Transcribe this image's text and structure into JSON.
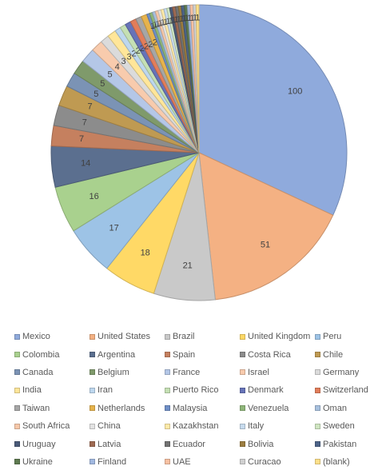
{
  "chart_data": {
    "type": "pie",
    "title": "",
    "legend_position": "bottom",
    "slices": [
      {
        "label": "Mexico",
        "value": 100,
        "color": "#8faadc"
      },
      {
        "label": "United States",
        "value": 51,
        "color": "#f4b183"
      },
      {
        "label": "Brazil",
        "value": 21,
        "color": "#c9c9c9"
      },
      {
        "label": "United Kingdom",
        "value": 18,
        "color": "#ffd966"
      },
      {
        "label": "Peru",
        "value": 17,
        "color": "#9dc3e6"
      },
      {
        "label": "Colombia",
        "value": 16,
        "color": "#a9d18e"
      },
      {
        "label": "Argentina",
        "value": 14,
        "color": "#5b6f8f"
      },
      {
        "label": "Spain",
        "value": 7,
        "color": "#c5805f"
      },
      {
        "label": "Costa Rica",
        "value": 7,
        "color": "#8c8c8c"
      },
      {
        "label": "Chile",
        "value": 7,
        "color": "#bf9a52"
      },
      {
        "label": "Canada",
        "value": 5,
        "color": "#7b93b5"
      },
      {
        "label": "Belgium",
        "value": 5,
        "color": "#7f9a6b"
      },
      {
        "label": "France",
        "value": 5,
        "color": "#b4c7e7"
      },
      {
        "label": "Israel",
        "value": 4,
        "color": "#f8cbad"
      },
      {
        "label": "Germany",
        "value": 3,
        "color": "#dbdbdb"
      },
      {
        "label": "India",
        "value": 3,
        "color": "#ffe699"
      },
      {
        "label": "Iran",
        "value": 2,
        "color": "#bdd7ee"
      },
      {
        "label": "Puerto Rico",
        "value": 2,
        "color": "#c5e0b4"
      },
      {
        "label": "Denmark",
        "value": 2,
        "color": "#6673b8"
      },
      {
        "label": "Switzerland",
        "value": 2,
        "color": "#e27d5a"
      },
      {
        "label": "Taiwan",
        "value": 2,
        "color": "#a6a6a6"
      },
      {
        "label": "Netherlands",
        "value": 2,
        "color": "#e6b34c"
      },
      {
        "label": "Malaysia",
        "value": 1,
        "color": "#6f8fc7"
      },
      {
        "label": "Venezuela",
        "value": 1,
        "color": "#8fb67a"
      },
      {
        "label": "Oman",
        "value": 1,
        "color": "#a7c0de"
      },
      {
        "label": "South Africa",
        "value": 1,
        "color": "#f6c8a9"
      },
      {
        "label": "China",
        "value": 1,
        "color": "#e3e3e3"
      },
      {
        "label": "Kazakhstan",
        "value": 1,
        "color": "#ffeaa8"
      },
      {
        "label": "Italy",
        "value": 1,
        "color": "#c7dbee"
      },
      {
        "label": "Sweden",
        "value": 1,
        "color": "#cfe5c1"
      },
      {
        "label": "Uruguay",
        "value": 1,
        "color": "#4a5a78"
      },
      {
        "label": "Latvia",
        "value": 1,
        "color": "#9e6a52"
      },
      {
        "label": "Ecuador",
        "value": 1,
        "color": "#737373"
      },
      {
        "label": "Bolivia",
        "value": 1,
        "color": "#9c7d40"
      },
      {
        "label": "Pakistan",
        "value": 1,
        "color": "#4d6488"
      },
      {
        "label": "Ukraine",
        "value": 1,
        "color": "#5e7a50"
      },
      {
        "label": "Finland",
        "value": 1,
        "color": "#a1b8e0"
      },
      {
        "label": "UAE",
        "value": 1,
        "color": "#f7c1a2"
      },
      {
        "label": "Curacao",
        "value": 1,
        "color": "#d0d0d0"
      },
      {
        "label": "(blank)",
        "value": 1,
        "color": "#ffe08a"
      }
    ]
  }
}
